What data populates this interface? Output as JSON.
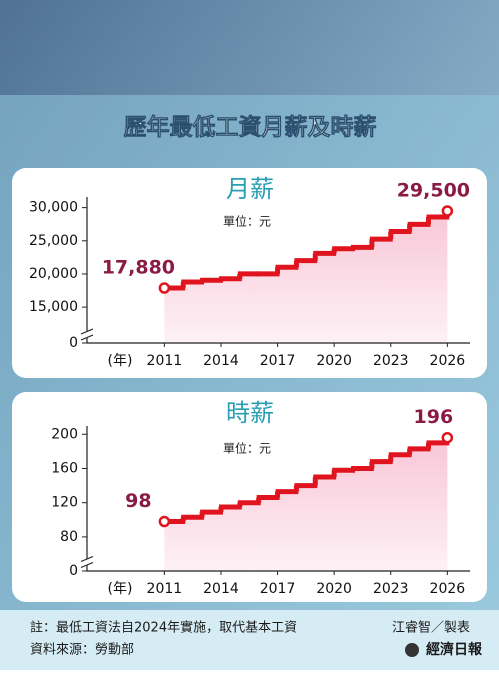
{
  "title": "歷年最低工資月薪及時薪",
  "chart_data": [
    {
      "type": "step",
      "title": "月薪",
      "unit": "單位：元",
      "x_label": "(年)",
      "x": [
        2011,
        2012,
        2013,
        2014,
        2015,
        2016,
        2017,
        2018,
        2019,
        2020,
        2021,
        2022,
        2023,
        2024,
        2025,
        2026
      ],
      "series": [
        {
          "name": "月薪",
          "color": "#e0141e",
          "values": [
            17880,
            18780,
            19047,
            19273,
            20008,
            20008,
            21009,
            22000,
            23100,
            23800,
            24000,
            25250,
            26400,
            27470,
            28590,
            29500
          ],
          "value_labels": [
            "17,880",
            null,
            null,
            null,
            null,
            null,
            null,
            null,
            null,
            null,
            null,
            null,
            null,
            null,
            null,
            "29,500"
          ]
        }
      ],
      "xlim": [
        2006.9,
        2027.2
      ],
      "xticks": [
        2011,
        2014,
        2017,
        2020,
        2023,
        2026
      ],
      "ylim": [
        0,
        31000
      ],
      "axis_break": [
        0,
        12000
      ],
      "yticks": [
        0,
        {
          "value": 15000,
          "label": "15,000"
        },
        {
          "value": 20000,
          "label": "20,000"
        },
        {
          "value": 25000,
          "label": "25,000"
        },
        {
          "value": 30000,
          "label": "30,000"
        }
      ]
    },
    {
      "type": "step",
      "title": "時薪",
      "unit": "單位：元",
      "x_label": "(年)",
      "x": [
        2011,
        2012,
        2013,
        2014,
        2015,
        2016,
        2017,
        2018,
        2019,
        2020,
        2021,
        2022,
        2023,
        2024,
        2025,
        2026
      ],
      "series": [
        {
          "name": "時薪",
          "color": "#e0141e",
          "values": [
            98,
            103,
            109,
            115,
            120,
            126,
            133,
            140,
            150,
            158,
            160,
            168,
            176,
            183,
            190,
            196
          ],
          "value_labels": [
            "98",
            null,
            null,
            null,
            null,
            null,
            null,
            null,
            null,
            null,
            null,
            null,
            null,
            null,
            null,
            "196"
          ]
        }
      ],
      "xlim": [
        2006.9,
        2027.2
      ],
      "xticks": [
        2011,
        2014,
        2017,
        2020,
        2023,
        2026
      ],
      "ylim": [
        0,
        205
      ],
      "axis_break": [
        0,
        60
      ],
      "yticks": [
        0,
        80,
        120,
        160,
        200
      ]
    }
  ],
  "footnote": "註：最低工資法自2024年實施，取代基本工資",
  "credit": "江睿智／製表",
  "source": "資料來源：勞動部",
  "publisher": "經濟日報"
}
